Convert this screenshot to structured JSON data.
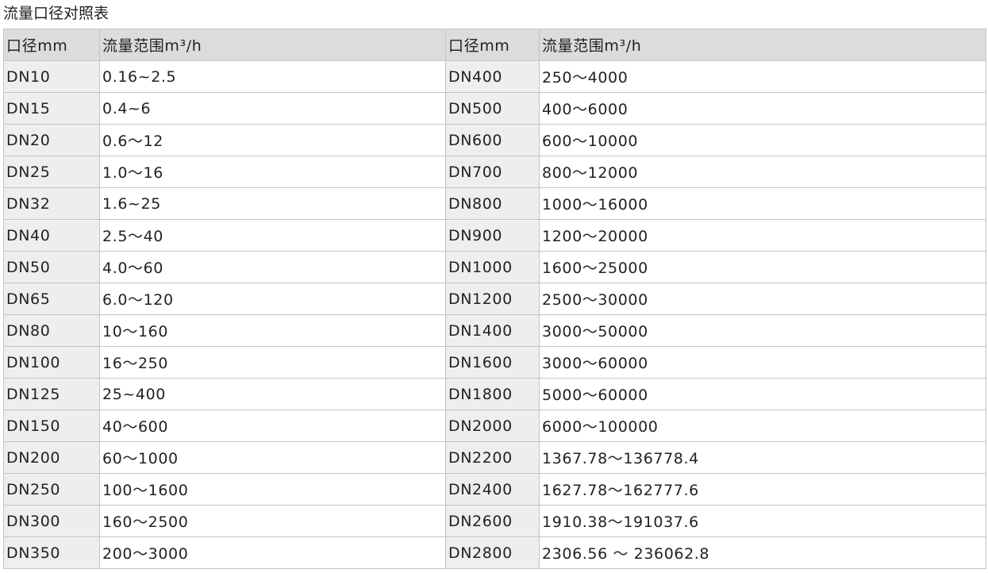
{
  "title": "流量口径对照表",
  "headers": [
    "口径mm",
    "流量范围m³/h",
    "口径mm",
    "流量范围m³/h"
  ],
  "rows": [
    [
      "DN10",
      "0.16~2.5",
      "DN400",
      "250～4000"
    ],
    [
      "DN15",
      "0.4~6",
      "DN500",
      "400～6000"
    ],
    [
      "DN20",
      "0.6～12",
      "DN600",
      "600～10000"
    ],
    [
      "DN25",
      "1.0～16",
      "DN700",
      "800～12000"
    ],
    [
      "DN32",
      "1.6~25",
      "DN800",
      "1000～16000"
    ],
    [
      "DN40",
      "2.5～40",
      "DN900",
      "1200～20000"
    ],
    [
      "DN50",
      "4.0～60",
      "DN1000",
      "1600～25000"
    ],
    [
      "DN65",
      "6.0～120",
      "DN1200",
      "2500～30000"
    ],
    [
      "DN80",
      "10～160",
      "DN1400",
      "3000～50000"
    ],
    [
      "DN100",
      "16～250",
      "DN1600",
      "3000～60000"
    ],
    [
      "DN125",
      "25~400",
      "DN1800",
      "5000～60000"
    ],
    [
      "DN150",
      "40～600",
      "DN2000",
      "6000～100000"
    ],
    [
      "DN200",
      "60～1000",
      "DN2200",
      "1367.78～136778.4"
    ],
    [
      "DN250",
      "100～1600",
      "DN2400",
      "1627.78～162777.6"
    ],
    [
      "DN300",
      "160～2500",
      "DN2600",
      "1910.38～191037.6"
    ],
    [
      "DN350",
      "200～3000",
      "DN2800",
      "2306.56 ～ 236062.8"
    ]
  ]
}
